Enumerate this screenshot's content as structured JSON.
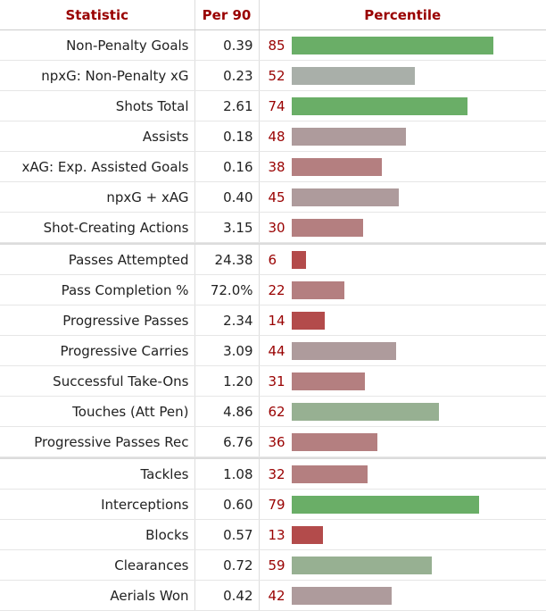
{
  "header": {
    "statistic": "Statistic",
    "per90": "Per 90",
    "percentile": "Percentile"
  },
  "chart_data": {
    "type": "bar",
    "title": "",
    "xlabel": "Percentile",
    "ylabel": "Statistic",
    "xlim": [
      0,
      100
    ],
    "groups": [
      [
        {
          "stat": "Non-Penalty Goals",
          "per90": "0.39",
          "percentile": 85
        },
        {
          "stat": "npxG: Non-Penalty xG",
          "per90": "0.23",
          "percentile": 52
        },
        {
          "stat": "Shots Total",
          "per90": "2.61",
          "percentile": 74
        },
        {
          "stat": "Assists",
          "per90": "0.18",
          "percentile": 48
        },
        {
          "stat": "xAG: Exp. Assisted Goals",
          "per90": "0.16",
          "percentile": 38
        },
        {
          "stat": "npxG + xAG",
          "per90": "0.40",
          "percentile": 45
        },
        {
          "stat": "Shot-Creating Actions",
          "per90": "3.15",
          "percentile": 30
        }
      ],
      [
        {
          "stat": "Passes Attempted",
          "per90": "24.38",
          "percentile": 6
        },
        {
          "stat": "Pass Completion %",
          "per90": "72.0%",
          "percentile": 22
        },
        {
          "stat": "Progressive Passes",
          "per90": "2.34",
          "percentile": 14
        },
        {
          "stat": "Progressive Carries",
          "per90": "3.09",
          "percentile": 44
        },
        {
          "stat": "Successful Take-Ons",
          "per90": "1.20",
          "percentile": 31
        },
        {
          "stat": "Touches (Att Pen)",
          "per90": "4.86",
          "percentile": 62
        },
        {
          "stat": "Progressive Passes Rec",
          "per90": "6.76",
          "percentile": 36
        }
      ],
      [
        {
          "stat": "Tackles",
          "per90": "1.08",
          "percentile": 32
        },
        {
          "stat": "Interceptions",
          "per90": "0.60",
          "percentile": 79
        },
        {
          "stat": "Blocks",
          "per90": "0.57",
          "percentile": 13
        },
        {
          "stat": "Clearances",
          "per90": "0.72",
          "percentile": 59
        },
        {
          "stat": "Aerials Won",
          "per90": "0.42",
          "percentile": 42
        }
      ]
    ]
  },
  "colors": {
    "header_text": "#990000",
    "percentile_text": "#990000",
    "bar_very_low": "#b34b4b",
    "bar_low": "#b47f80",
    "bar_mid": "#ae9b9c",
    "bar_mid_high": "#a9afa9",
    "bar_high": "#97b092",
    "bar_top": "#6aae67"
  }
}
